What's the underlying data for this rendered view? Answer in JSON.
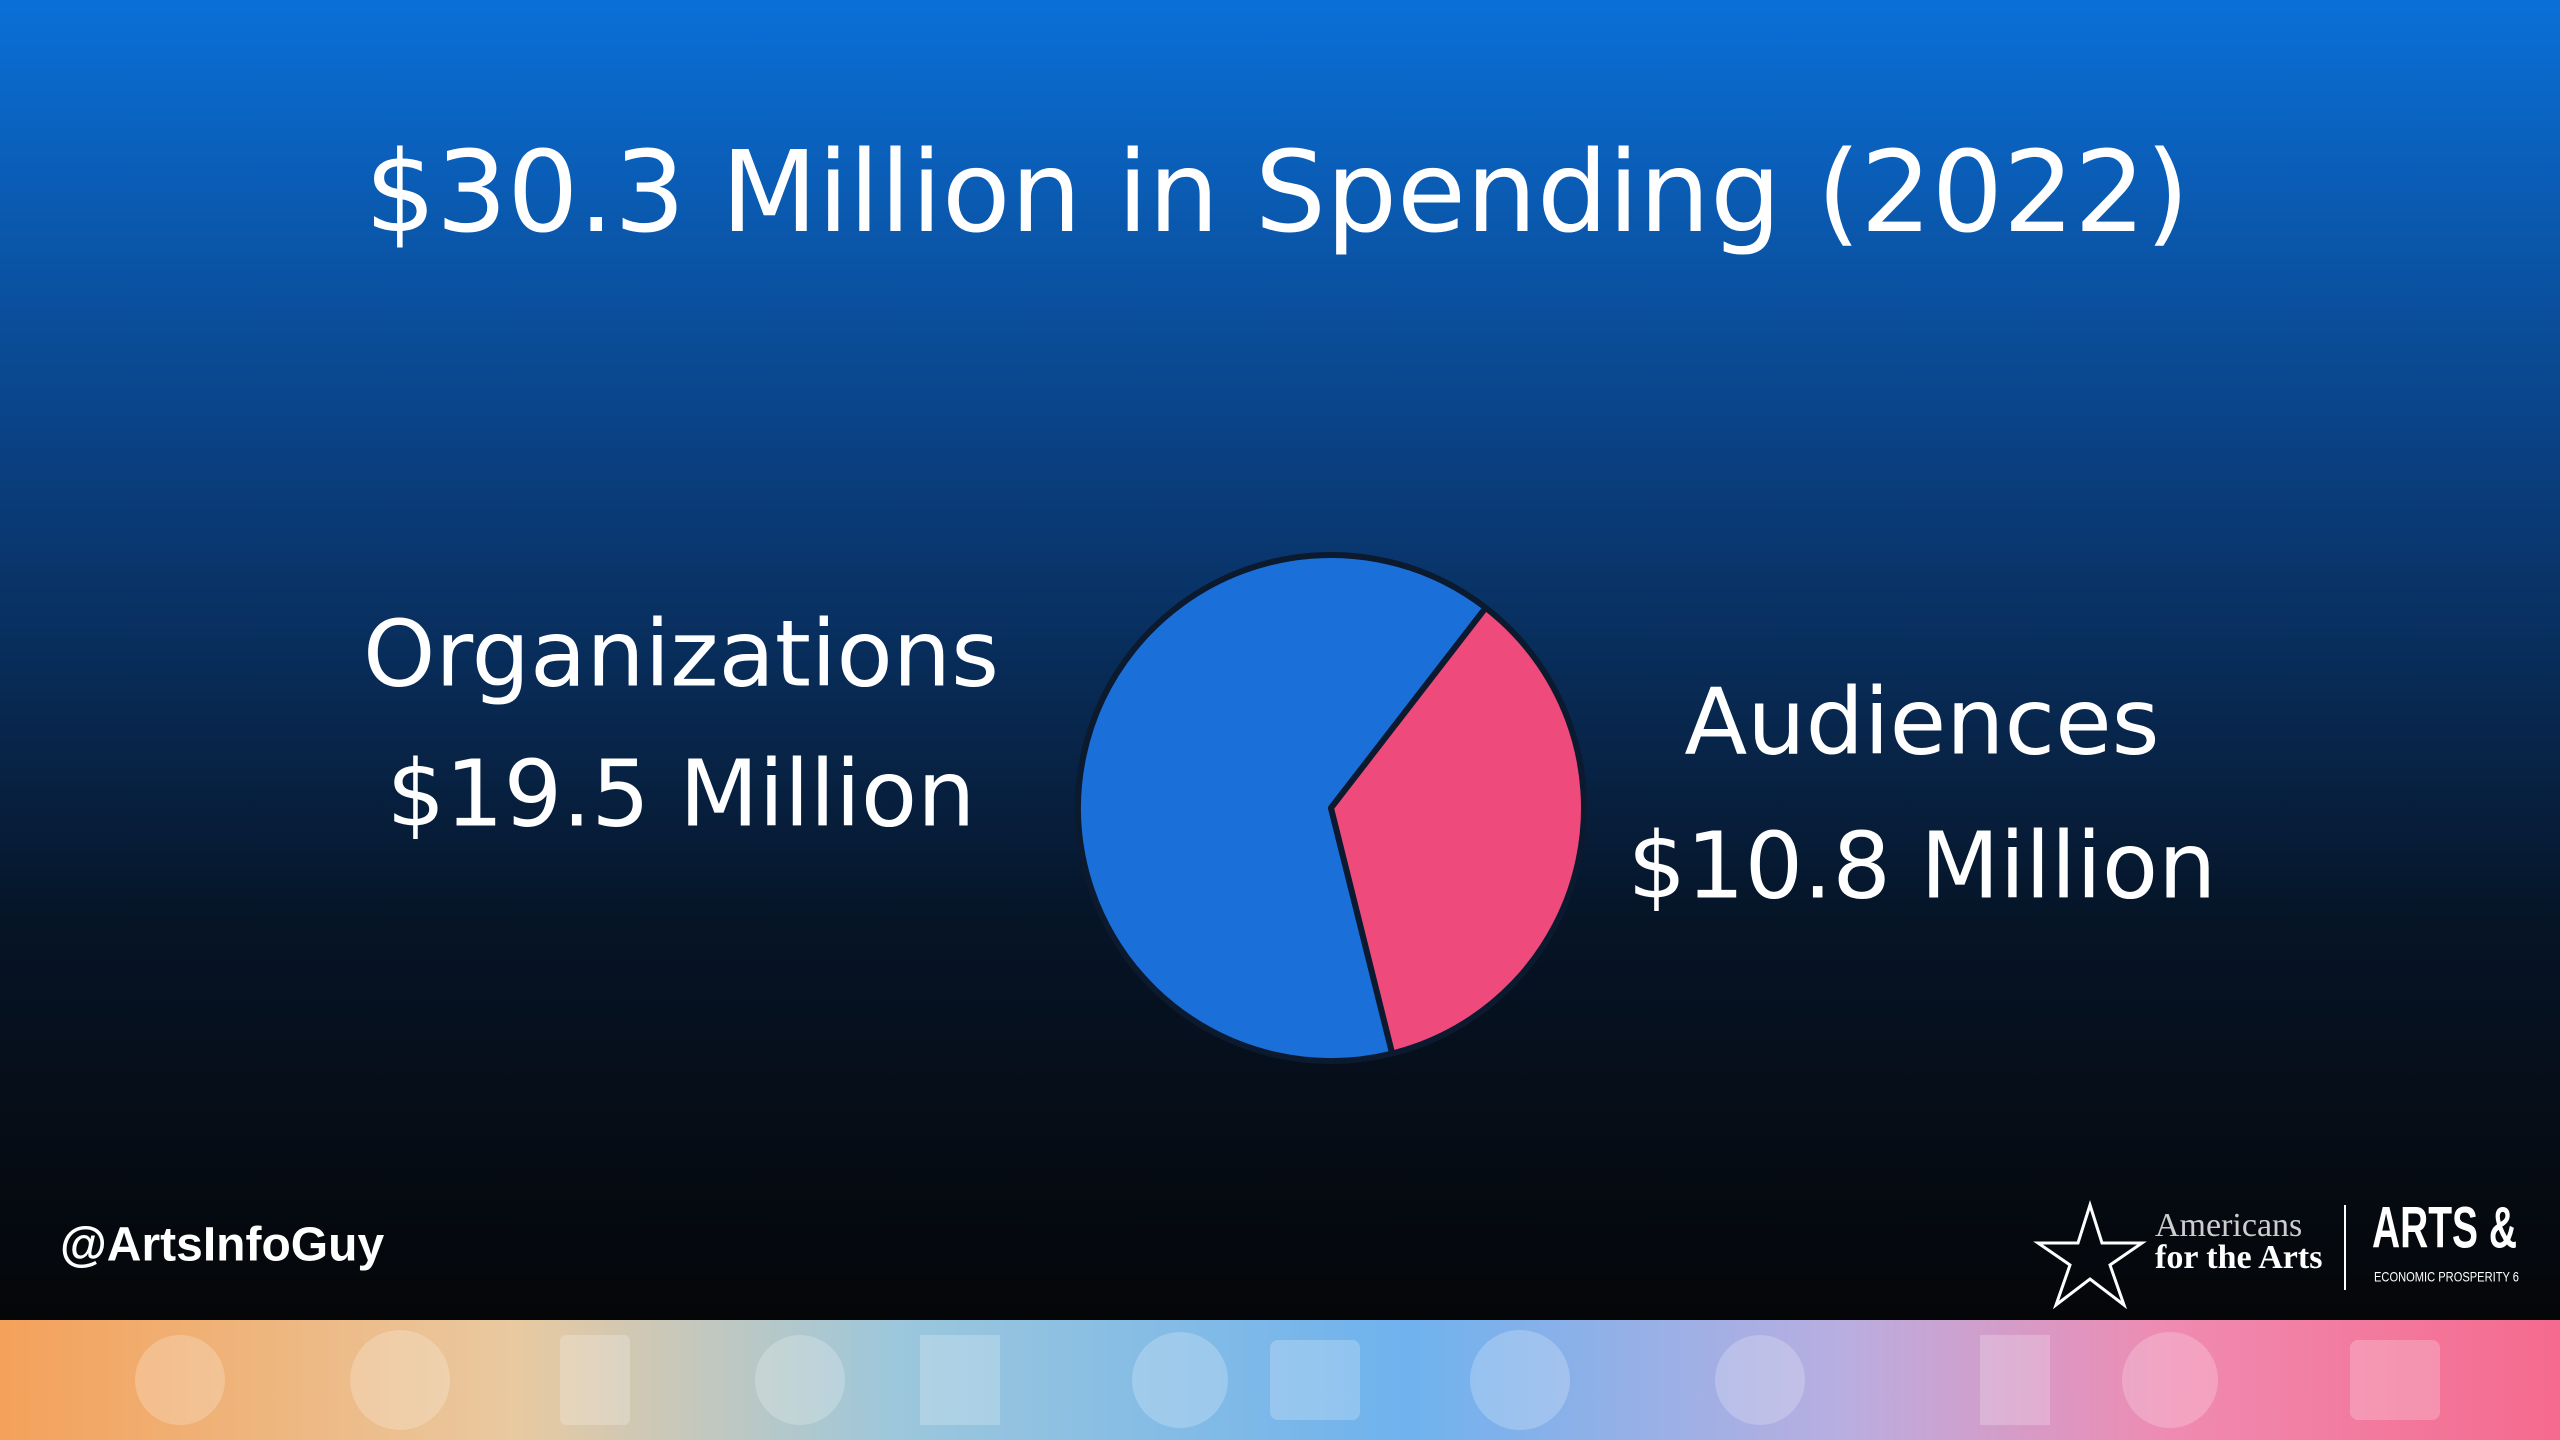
{
  "chart_data": {
    "type": "pie",
    "title": "$30.3 Million in Spending (2022)",
    "categories": [
      "Organizations",
      "Audiences"
    ],
    "values": [
      19.5,
      10.8
    ],
    "value_labels": [
      "$19.5 Million",
      "$10.8 Million"
    ],
    "colors": [
      "#1b6fd9",
      "#ee4a7c"
    ]
  },
  "footer": {
    "handle": "@ArtsInfoGuy",
    "logo_left": [
      "Americans",
      "for the Arts"
    ],
    "logo_right": [
      "ARTS &",
      "ECONOMIC PROSPERITY 6"
    ]
  }
}
